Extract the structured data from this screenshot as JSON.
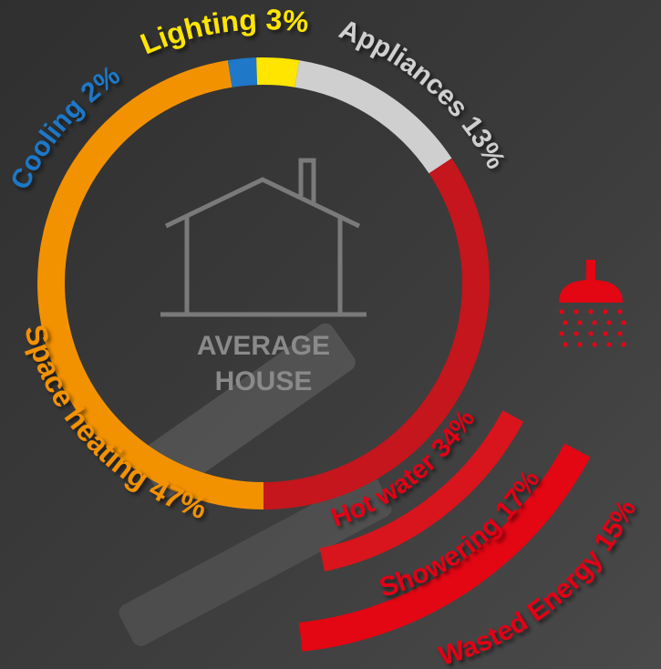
{
  "chart_data": {
    "type": "pie",
    "center_label": [
      "AVERAGE",
      "HOUSE"
    ],
    "slices": [
      {
        "label": "Space heating 47%",
        "value": 47,
        "color": "#f39200"
      },
      {
        "label": "Cooling 2%",
        "value": 2,
        "color": "#1f78c8"
      },
      {
        "label": "Lighting 3%",
        "value": 3,
        "color": "#ffe500"
      },
      {
        "label": "Appliances 13%",
        "value": 13,
        "color": "#cfcfcf"
      },
      {
        "label": "Hot water 34%",
        "value": 34,
        "color": "#c4161c"
      }
    ],
    "hot_water_breakdown": [
      {
        "label": "Showering 17%",
        "value": 17,
        "color": "#d8141c"
      },
      {
        "label": "Wasted Energy 15%",
        "value": 15,
        "color": "#e30613"
      }
    ]
  },
  "icons": {
    "house": "house-outline-icon",
    "shower": "shower-head-icon"
  }
}
